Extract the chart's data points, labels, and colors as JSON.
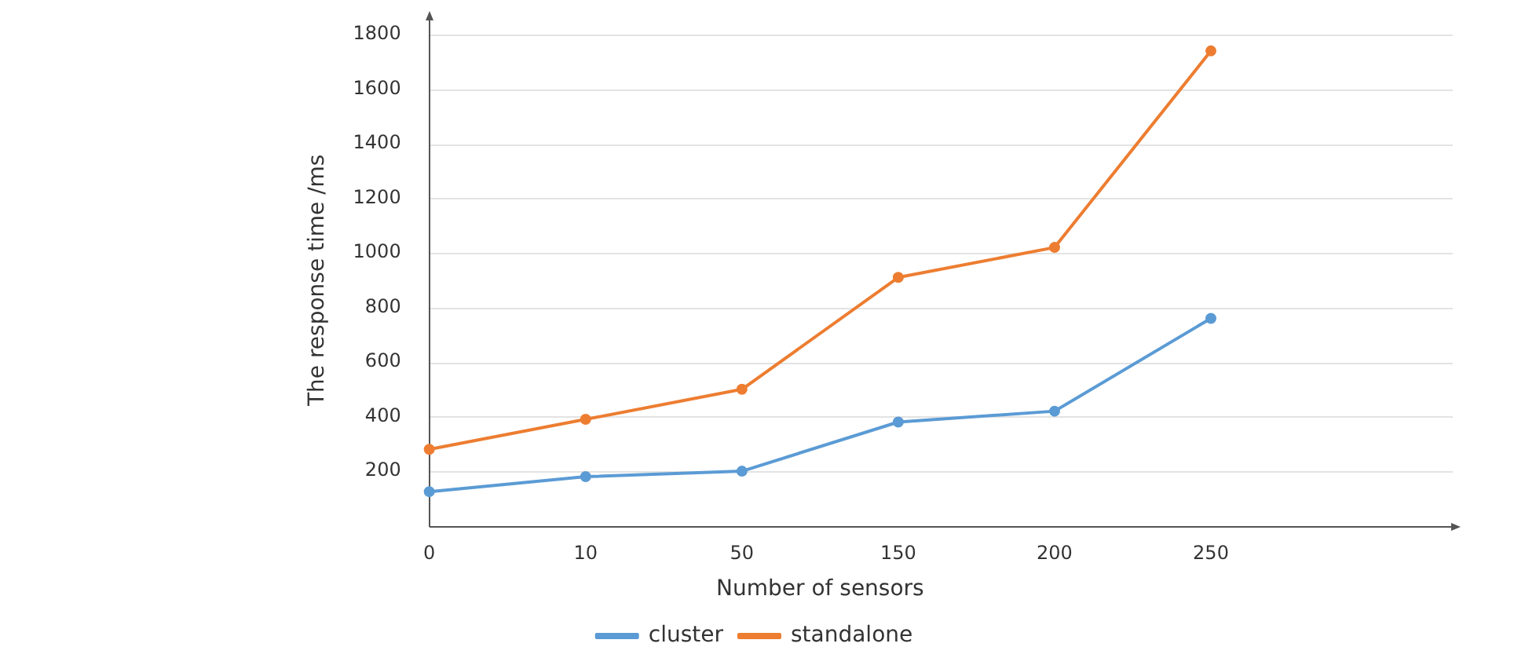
{
  "chart_data": {
    "type": "line",
    "xlabel": "Number of sensors",
    "ylabel": "The response time /ms",
    "categories": [
      "0",
      "10",
      "50",
      "150",
      "200",
      "250"
    ],
    "series": [
      {
        "name": "cluster",
        "color": "#5b9bd5",
        "values": [
          125,
          180,
          200,
          380,
          420,
          760
        ]
      },
      {
        "name": "standalone",
        "color": "#ed7d31",
        "values": [
          280,
          390,
          500,
          910,
          1020,
          1740
        ]
      }
    ],
    "ylim": [
      0,
      1800
    ],
    "yticks": [
      200,
      400,
      600,
      800,
      1000,
      1200,
      1400,
      1600,
      1800
    ],
    "grid": "y",
    "legend": "bottom",
    "marker": "circle",
    "line_style": "solid"
  }
}
